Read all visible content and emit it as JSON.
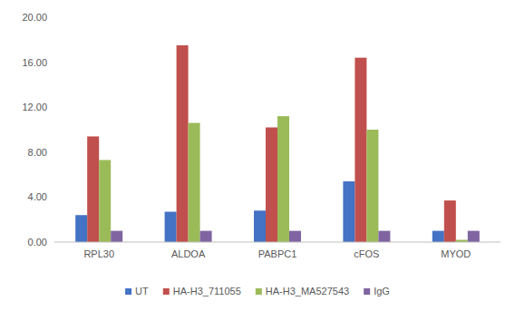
{
  "chart_data": {
    "type": "bar",
    "categories": [
      "RPL30",
      "ALDOA",
      "PABPC1",
      "cFOS",
      "MYOD"
    ],
    "series": [
      {
        "name": "UT",
        "color": "#4472c4",
        "values": [
          2.4,
          2.7,
          2.8,
          5.4,
          1.0
        ]
      },
      {
        "name": "HA-H3_711055",
        "color": "#c0504d",
        "values": [
          9.4,
          17.5,
          10.2,
          16.4,
          3.7
        ]
      },
      {
        "name": "HA-H3_MA527543",
        "color": "#9bbb59",
        "values": [
          7.3,
          10.6,
          11.2,
          10.0,
          0.2
        ]
      },
      {
        "name": "IgG",
        "color": "#8064a2",
        "values": [
          1.0,
          1.0,
          1.0,
          1.0,
          1.0
        ]
      }
    ],
    "ylim": [
      0,
      20
    ],
    "yticks": [
      {
        "value": 0,
        "label": "0.00"
      },
      {
        "value": 4,
        "label": "4.00"
      },
      {
        "value": 8,
        "label": "8.00"
      },
      {
        "value": 12,
        "label": "12.00"
      },
      {
        "value": 16,
        "label": "16.00"
      },
      {
        "value": 20,
        "label": "20.00"
      }
    ],
    "grid": false,
    "legend": "bottom"
  }
}
